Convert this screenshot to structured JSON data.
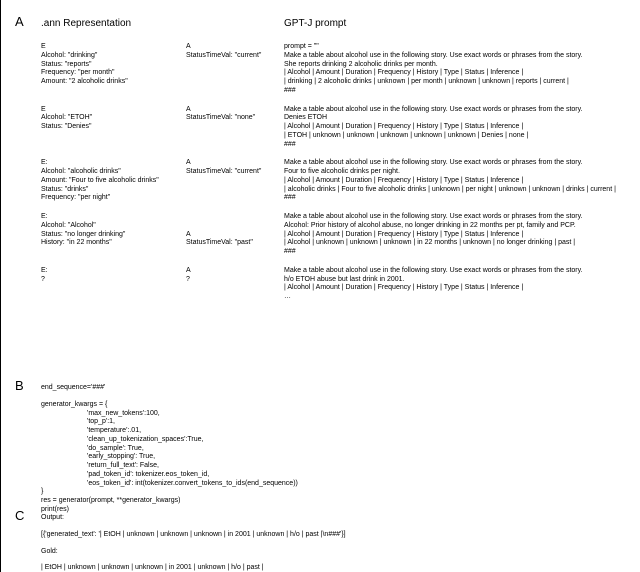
{
  "letters": {
    "A": "A",
    "B": "B",
    "C": "C"
  },
  "headers": {
    "ann": ".ann Representation",
    "gpt": "GPT-J prompt"
  },
  "rowsA": [
    {
      "left": [
        "E",
        "Alcohol: \"drinking\"",
        "Status: \"reports\"",
        "Frequency: \"per month\"",
        "Amount: \"2 alcoholic drinks\""
      ],
      "mid": [
        "A",
        "StatusTimeVal: \"current\""
      ],
      "right": [
        "prompt = \"\"",
        "Make a table about alcohol use in the following story. Use exact words or phrases from the story.",
        "She reports drinking 2 alcoholic drinks per month.",
        "| Alcohol | Amount | Duration | Frequency | History | Type | Status | Inference |",
        "| drinking | 2 alcoholic drinks | unknown | per month | unknown | unknown | reports | current |",
        "###"
      ]
    },
    {
      "left": [
        "E",
        "Alcohol: \"ETOH\"",
        "Status: \"Denies\""
      ],
      "mid": [
        "A",
        "StatusTimeVal: \"none\""
      ],
      "right": [
        "Make a table about alcohol use in the following story. Use exact words or phrases from the story.",
        "Denies ETOH",
        "| Alcohol | Amount | Duration | Frequency | History | Type | Status | Inference |",
        "| ETOH | unknown | unknown | unknown | unknown | unknown | Denies | none |",
        "###"
      ]
    },
    {
      "left": [
        "E:",
        "Alcohol: \"alcoholic drinks\"",
        "Amount: \"Four to five alcoholic drinks\"",
        "Status: \"drinks\"",
        "Frequency: \"per night\""
      ],
      "mid": [
        "A",
        "StatusTimeVal: \"current\""
      ],
      "right": [
        "Make a table about alcohol use in the following story. Use exact words or phrases from the story.",
        "Four to five alcoholic drinks per night.",
        "| Alcohol | Amount | Duration | Frequency | History | Type | Status | Inference |",
        "| alcoholic drinks | Four to five alcoholic drinks | unknown | per night | unknown | unknown | drinks | current |",
        "###"
      ]
    },
    {
      "left": [
        "E:",
        "Alcohol: \"Alcohol\"",
        "Status: \"no longer drinking\"",
        "History: \"in 22 months\""
      ],
      "mid": [
        "",
        "",
        "A",
        "StatusTimeVal: \"past\""
      ],
      "right": [
        "Make a table about alcohol use in the following story. Use exact words or phrases from the story.",
        "Alcohol: Prior history of alcohol abuse, no longer drinking in 22 months per pt, family and PCP.",
        "| Alcohol | Amount | Duration | Frequency | History | Type | Status | Inference |",
        "| Alcohol | unknown | unknown | unknown | in 22 months | unknown | no longer drinking | past |",
        "###"
      ]
    },
    {
      "left": [
        "E:",
        "?"
      ],
      "mid": [
        "A",
        "?"
      ],
      "right": [
        "Make a table about alcohol use in the following story. Use exact words or phrases from the story.",
        "h/o ETOH abuse but last drink in 2001.",
        "| Alcohol | Amount | Duration | Frequency | History | Type | Status | Inference |",
        "…"
      ]
    }
  ],
  "blockB": {
    "lines1": [
      "end_sequence='###'"
    ],
    "lines2": [
      "generator_kwargs = {",
      "        'max_new_tokens':100,",
      "        'top_p':1,",
      "        'temperature':.01,",
      "        'clean_up_tokenization_spaces':True,",
      "        'do_sample': True,",
      "        'early_stopping': True,",
      "        'return_full_text': False,",
      "        'pad_token_id': tokenizer.eos_token_id,",
      "        'eos_token_id': int(tokenizer.convert_tokens_to_ids(end_sequence))",
      "}",
      "res = generator(prompt, **generator_kwargs)",
      "print(res)"
    ]
  },
  "blockC": {
    "outputLabel": "Output:",
    "outputLine": "[{'generated_text': '| EtOH | unknown | unknown | unknown | in 2001 | unknown | h/o | past |\\n###'}]",
    "goldLabel": "Gold:",
    "goldLine": "| EtOH | unknown | unknown | unknown | in 2001 | unknown | h/o | past |"
  }
}
